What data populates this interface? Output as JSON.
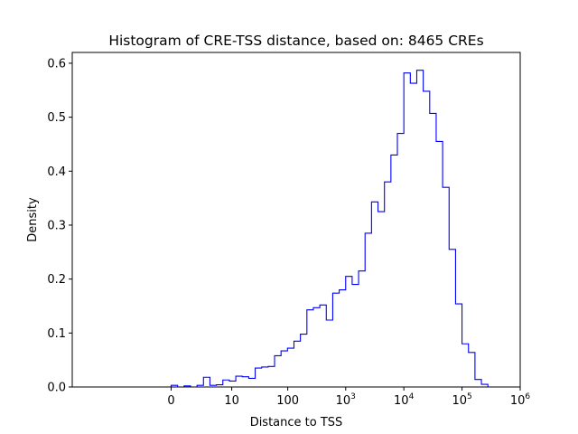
{
  "chart_data": {
    "type": "histogram-step",
    "title": "Histogram of CRE-TSS distance, based on: 8465 CREs",
    "xlabel": "Distance to TSS",
    "ylabel": "Density",
    "x_scale": "symlog",
    "xlim": [
      -0.34,
      1.2
    ],
    "ylim": [
      0,
      0.62
    ],
    "y_ticks": [
      "0.0",
      "0.1",
      "0.2",
      "0.3",
      "0.4",
      "0.5",
      "0.6"
    ],
    "x_ticks": [
      {
        "value": 0,
        "label": "0"
      },
      {
        "value": 10,
        "label": "10"
      },
      {
        "value": 100,
        "label": "100"
      },
      {
        "value": 1000,
        "base": "10",
        "exp": "3"
      },
      {
        "value": 10000,
        "base": "10",
        "exp": "4"
      },
      {
        "value": 100000,
        "base": "10",
        "exp": "5"
      },
      {
        "value": 1000000,
        "base": "10",
        "exp": "6"
      }
    ],
    "line_color": "#0000ff",
    "grid": false,
    "bin_count": 54,
    "densities": [
      0.003,
      0.0,
      0.002,
      0.0,
      0.003,
      0.018,
      0.003,
      0.004,
      0.013,
      0.011,
      0.02,
      0.019,
      0.016,
      0.035,
      0.037,
      0.038,
      0.058,
      0.067,
      0.072,
      0.085,
      0.098,
      0.143,
      0.147,
      0.152,
      0.124,
      0.174,
      0.18,
      0.205,
      0.19,
      0.215,
      0.285,
      0.343,
      0.325,
      0.38,
      0.43,
      0.47,
      0.582,
      0.563,
      0.587,
      0.548,
      0.507,
      0.455,
      0.37,
      0.255,
      0.154,
      0.08,
      0.064,
      0.014,
      0.005,
      0.0,
      0.0,
      0.0,
      0.0,
      0.0
    ]
  }
}
